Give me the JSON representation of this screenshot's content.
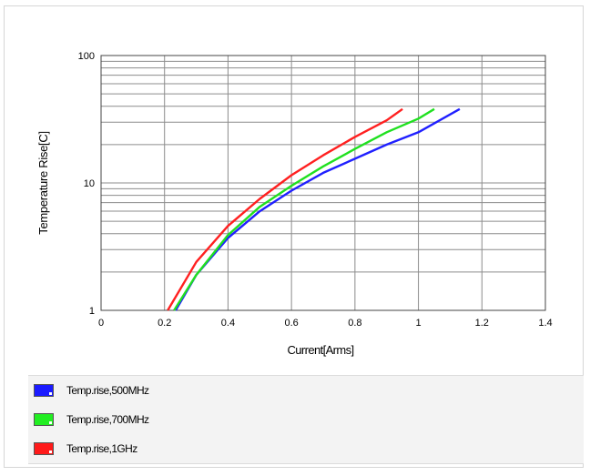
{
  "chart_data": {
    "type": "line",
    "xlabel": "Current[Arms]",
    "ylabel": "Temperature Rise[C]",
    "x_ticks": [
      "0",
      "0.2",
      "0.4",
      "0.6",
      "0.8",
      "1",
      "1.2",
      "1.4"
    ],
    "y_ticks": [
      "1",
      "10",
      "100"
    ],
    "xlim": [
      0,
      1.4
    ],
    "ylim": [
      1,
      100
    ],
    "y_scale": "log",
    "grid": true,
    "legend_position": "bottom",
    "series": [
      {
        "name": "Temp.rise,500MHz",
        "color": "#2020ff",
        "x": [
          0.235,
          0.3,
          0.4,
          0.5,
          0.6,
          0.7,
          0.8,
          0.9,
          1.0,
          1.13
        ],
        "y": [
          1.0,
          1.9,
          3.7,
          6.0,
          8.7,
          12.0,
          15.5,
          20.0,
          25.0,
          38.0
        ]
      },
      {
        "name": "Temp.rise,700MHz",
        "color": "#20e020",
        "x": [
          0.23,
          0.3,
          0.4,
          0.5,
          0.6,
          0.7,
          0.8,
          0.9,
          1.0,
          1.05
        ],
        "y": [
          1.0,
          1.9,
          3.9,
          6.5,
          9.5,
          13.5,
          18.5,
          25.0,
          32.0,
          38.0
        ]
      },
      {
        "name": "Temp.rise,1GHz",
        "color": "#ff2020",
        "x": [
          0.21,
          0.3,
          0.4,
          0.5,
          0.6,
          0.7,
          0.8,
          0.9,
          0.95
        ],
        "y": [
          1.0,
          2.4,
          4.6,
          7.5,
          11.5,
          16.5,
          23.0,
          31.0,
          38.0
        ]
      }
    ]
  }
}
